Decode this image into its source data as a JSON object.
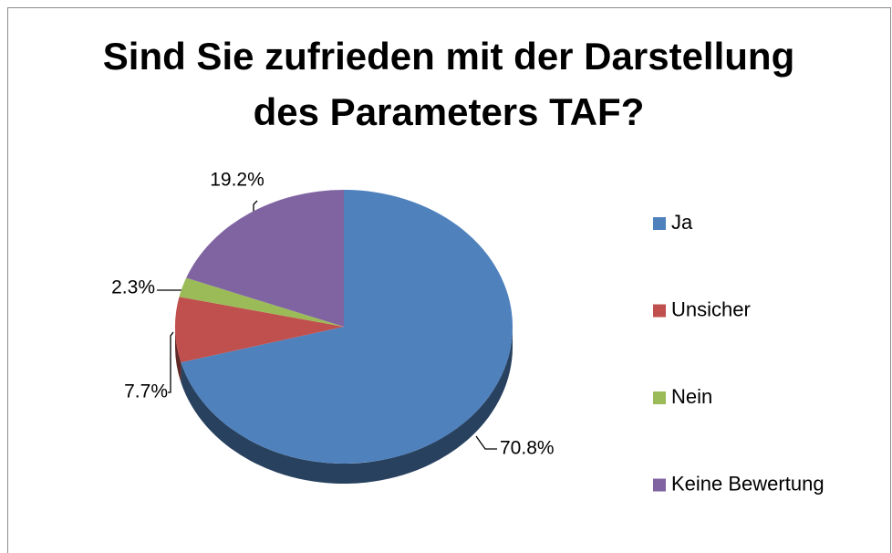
{
  "chart_data": {
    "type": "pie",
    "title": [
      "Sind Sie zufrieden mit der Darstellung",
      "des Parameters TAF?"
    ],
    "categories": [
      "Ja",
      "Unsicher",
      "Nein",
      "Keine Bewertung"
    ],
    "values": [
      70.8,
      7.7,
      2.3,
      19.2
    ],
    "value_labels": [
      "70.8%",
      "7.7%",
      "2.3%",
      "19.2%"
    ],
    "colors": [
      "#4f81bd",
      "#c0504d",
      "#9bbb59",
      "#8064a2"
    ],
    "legend": "right"
  }
}
